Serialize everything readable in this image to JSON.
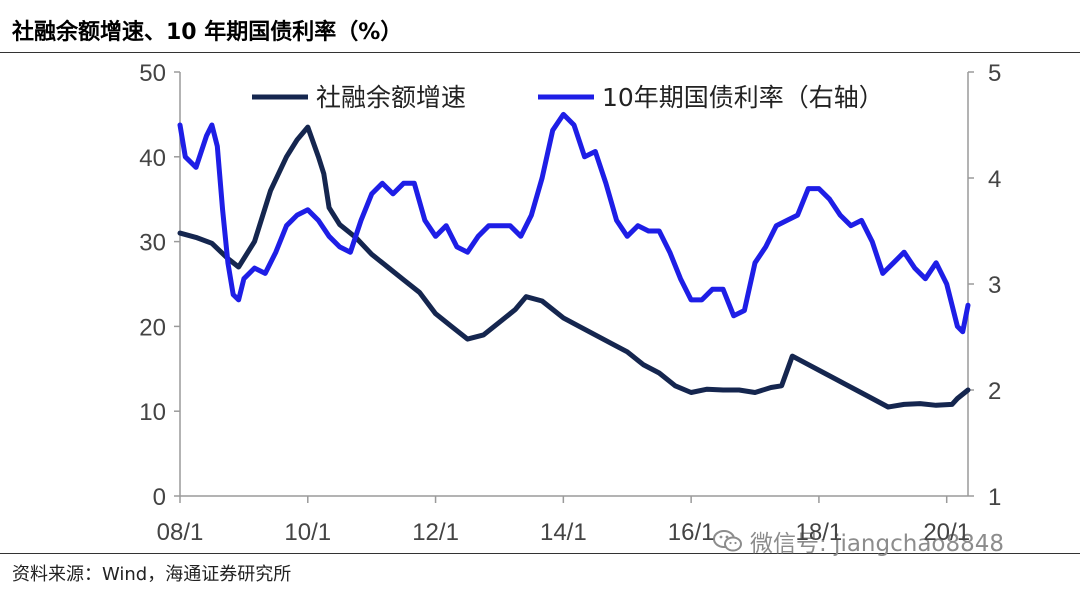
{
  "header": {
    "title": "社融余额增速、10 年期国债利率（%）"
  },
  "footer": {
    "source": "资料来源：Wind，海通证券研究所"
  },
  "watermark": {
    "text": "微信号: jiangchao8848",
    "icon": "wechat-icon"
  },
  "colors": {
    "left_series": "#15264f",
    "right_series": "#1e1ee6",
    "axis": "#9a9a9a"
  },
  "chart_data": {
    "type": "line",
    "x_ticks": [
      "08/1",
      "10/1",
      "12/1",
      "14/1",
      "16/1",
      "18/1",
      "20/1"
    ],
    "x_range": [
      "2008-01",
      "2020-05"
    ],
    "y_left": {
      "lim": [
        0,
        50
      ],
      "ticks": [
        "0",
        "10",
        "20",
        "30",
        "40",
        "50"
      ]
    },
    "y_right": {
      "lim": [
        1,
        5
      ],
      "ticks": [
        "1",
        "2",
        "3",
        "4",
        "5"
      ]
    },
    "legend_position": "top",
    "grid": false,
    "series": [
      {
        "name": "社融余额增速",
        "axis": "left",
        "color": "#15264f",
        "points": [
          [
            "2008-01",
            31
          ],
          [
            "2008-04",
            30.5
          ],
          [
            "2008-07",
            29.8
          ],
          [
            "2008-10",
            28
          ],
          [
            "2008-12",
            27
          ],
          [
            "2009-03",
            30
          ],
          [
            "2009-06",
            36
          ],
          [
            "2009-09",
            40
          ],
          [
            "2009-11",
            42
          ],
          [
            "2010-01",
            43.5
          ],
          [
            "2010-03",
            40
          ],
          [
            "2010-04",
            38
          ],
          [
            "2010-05",
            34
          ],
          [
            "2010-07",
            32
          ],
          [
            "2010-10",
            30.5
          ],
          [
            "2011-01",
            28.5
          ],
          [
            "2011-04",
            27
          ],
          [
            "2011-07",
            25.5
          ],
          [
            "2011-10",
            24
          ],
          [
            "2012-01",
            21.5
          ],
          [
            "2012-04",
            20
          ],
          [
            "2012-07",
            18.5
          ],
          [
            "2012-10",
            19
          ],
          [
            "2013-01",
            20.5
          ],
          [
            "2013-04",
            22
          ],
          [
            "2013-06",
            23.5
          ],
          [
            "2013-09",
            23
          ],
          [
            "2014-01",
            21
          ],
          [
            "2014-04",
            20
          ],
          [
            "2014-07",
            19
          ],
          [
            "2014-10",
            18
          ],
          [
            "2015-01",
            17
          ],
          [
            "2015-04",
            15.5
          ],
          [
            "2015-07",
            14.5
          ],
          [
            "2015-10",
            13
          ],
          [
            "2016-01",
            12.2
          ],
          [
            "2016-04",
            12.6
          ],
          [
            "2016-07",
            12.5
          ],
          [
            "2016-10",
            12.5
          ],
          [
            "2017-01",
            12.2
          ],
          [
            "2017-04",
            12.8
          ],
          [
            "2017-06",
            13
          ],
          [
            "2017-08",
            16.5
          ],
          [
            "2017-11",
            15.5
          ],
          [
            "2018-02",
            14.5
          ],
          [
            "2018-05",
            13.5
          ],
          [
            "2018-08",
            12.5
          ],
          [
            "2018-11",
            11.5
          ],
          [
            "2019-02",
            10.5
          ],
          [
            "2019-05",
            10.8
          ],
          [
            "2019-08",
            10.9
          ],
          [
            "2019-11",
            10.7
          ],
          [
            "2020-02",
            10.8
          ],
          [
            "2020-03",
            11.5
          ],
          [
            "2020-05",
            12.5
          ]
        ]
      },
      {
        "name": "10年期国债利率（右轴）",
        "axis": "right",
        "color": "#1e1ee6",
        "points": [
          [
            "2008-01",
            4.5
          ],
          [
            "2008-02",
            4.2
          ],
          [
            "2008-04",
            4.1
          ],
          [
            "2008-06",
            4.4
          ],
          [
            "2008-07",
            4.5
          ],
          [
            "2008-08",
            4.3
          ],
          [
            "2008-09",
            3.7
          ],
          [
            "2008-10",
            3.2
          ],
          [
            "2008-11",
            2.9
          ],
          [
            "2008-12",
            2.85
          ],
          [
            "2009-01",
            3.05
          ],
          [
            "2009-03",
            3.15
          ],
          [
            "2009-05",
            3.1
          ],
          [
            "2009-07",
            3.3
          ],
          [
            "2009-09",
            3.55
          ],
          [
            "2009-11",
            3.65
          ],
          [
            "2010-01",
            3.7
          ],
          [
            "2010-03",
            3.6
          ],
          [
            "2010-05",
            3.45
          ],
          [
            "2010-07",
            3.35
          ],
          [
            "2010-09",
            3.3
          ],
          [
            "2010-11",
            3.6
          ],
          [
            "2011-01",
            3.85
          ],
          [
            "2011-03",
            3.95
          ],
          [
            "2011-05",
            3.85
          ],
          [
            "2011-07",
            3.95
          ],
          [
            "2011-09",
            3.95
          ],
          [
            "2011-11",
            3.6
          ],
          [
            "2012-01",
            3.45
          ],
          [
            "2012-03",
            3.55
          ],
          [
            "2012-05",
            3.35
          ],
          [
            "2012-07",
            3.3
          ],
          [
            "2012-09",
            3.45
          ],
          [
            "2012-11",
            3.55
          ],
          [
            "2013-01",
            3.55
          ],
          [
            "2013-03",
            3.55
          ],
          [
            "2013-05",
            3.45
          ],
          [
            "2013-07",
            3.65
          ],
          [
            "2013-09",
            4.0
          ],
          [
            "2013-11",
            4.45
          ],
          [
            "2014-01",
            4.6
          ],
          [
            "2014-03",
            4.5
          ],
          [
            "2014-05",
            4.2
          ],
          [
            "2014-07",
            4.25
          ],
          [
            "2014-09",
            3.95
          ],
          [
            "2014-11",
            3.6
          ],
          [
            "2015-01",
            3.45
          ],
          [
            "2015-03",
            3.55
          ],
          [
            "2015-05",
            3.5
          ],
          [
            "2015-07",
            3.5
          ],
          [
            "2015-09",
            3.3
          ],
          [
            "2015-11",
            3.05
          ],
          [
            "2016-01",
            2.85
          ],
          [
            "2016-03",
            2.85
          ],
          [
            "2016-05",
            2.95
          ],
          [
            "2016-07",
            2.95
          ],
          [
            "2016-09",
            2.7
          ],
          [
            "2016-11",
            2.75
          ],
          [
            "2017-01",
            3.2
          ],
          [
            "2017-03",
            3.35
          ],
          [
            "2017-05",
            3.55
          ],
          [
            "2017-07",
            3.6
          ],
          [
            "2017-09",
            3.65
          ],
          [
            "2017-11",
            3.9
          ],
          [
            "2018-01",
            3.9
          ],
          [
            "2018-03",
            3.8
          ],
          [
            "2018-05",
            3.65
          ],
          [
            "2018-07",
            3.55
          ],
          [
            "2018-09",
            3.6
          ],
          [
            "2018-11",
            3.4
          ],
          [
            "2019-01",
            3.1
          ],
          [
            "2019-03",
            3.2
          ],
          [
            "2019-05",
            3.3
          ],
          [
            "2019-07",
            3.15
          ],
          [
            "2019-09",
            3.05
          ],
          [
            "2019-11",
            3.2
          ],
          [
            "2020-01",
            3.0
          ],
          [
            "2020-03",
            2.6
          ],
          [
            "2020-04",
            2.55
          ],
          [
            "2020-05",
            2.8
          ]
        ]
      }
    ]
  }
}
